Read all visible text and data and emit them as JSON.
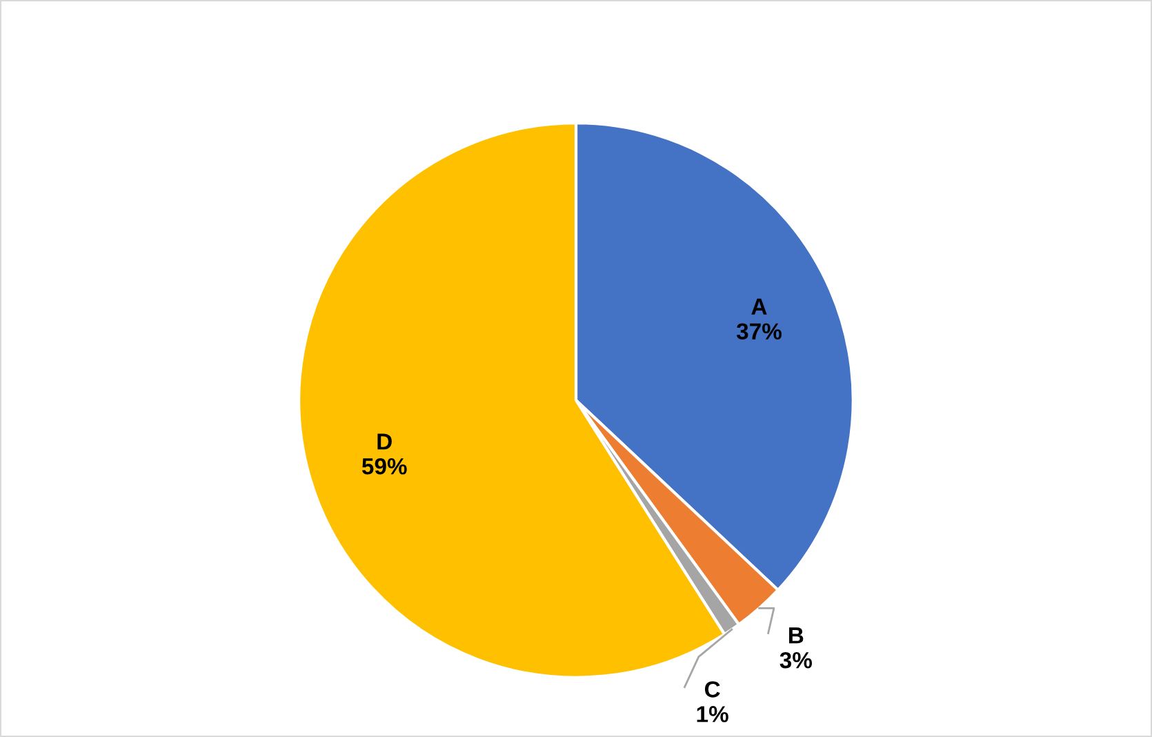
{
  "chart_data": {
    "type": "pie",
    "categories": [
      "A",
      "B",
      "C",
      "D"
    ],
    "values": [
      37,
      3,
      1,
      59
    ],
    "colors": [
      "#4472c4",
      "#ed7d31",
      "#a5a5a5",
      "#ffc000"
    ],
    "value_labels": [
      "37%",
      "3%",
      "1%",
      "59%"
    ],
    "legend": false
  }
}
